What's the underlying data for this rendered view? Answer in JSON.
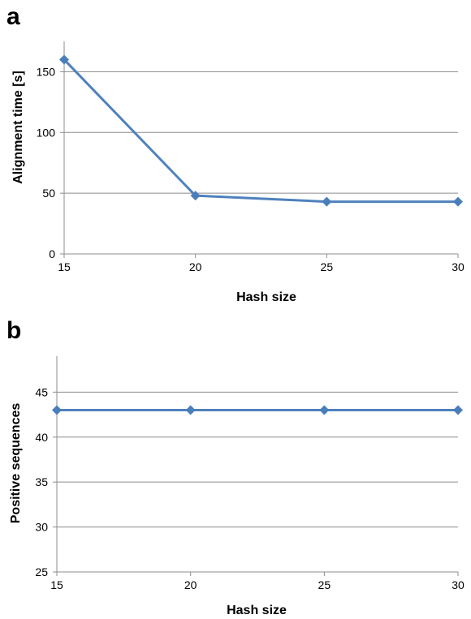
{
  "chart_data": [
    {
      "panel_label": "a",
      "type": "line",
      "xlabel": "Hash size",
      "ylabel": "Alignment time [s]",
      "x": [
        15,
        20,
        25,
        30
      ],
      "series": [
        {
          "values": [
            160,
            48,
            43,
            43
          ]
        }
      ],
      "xlim": [
        15,
        30
      ],
      "ylim": [
        0,
        175
      ],
      "xticks": [
        15,
        20,
        25,
        30
      ],
      "yticks": [
        0,
        50,
        100,
        150
      ],
      "grid": "horizontal",
      "marker": "diamond",
      "color": "#4f81bd",
      "marker_color": "#4a7ebb"
    },
    {
      "panel_label": "b",
      "type": "line",
      "xlabel": "Hash size",
      "ylabel": "Positive sequences",
      "x": [
        15,
        20,
        25,
        30
      ],
      "series": [
        {
          "values": [
            43,
            43,
            43,
            43
          ]
        }
      ],
      "xlim": [
        15,
        30
      ],
      "ylim": [
        25,
        49
      ],
      "xticks": [
        15,
        20,
        25,
        30
      ],
      "yticks": [
        25,
        30,
        35,
        40,
        45
      ],
      "grid": "horizontal",
      "marker": "diamond",
      "color": "#4f81bd",
      "marker_color": "#4a7ebb"
    }
  ]
}
